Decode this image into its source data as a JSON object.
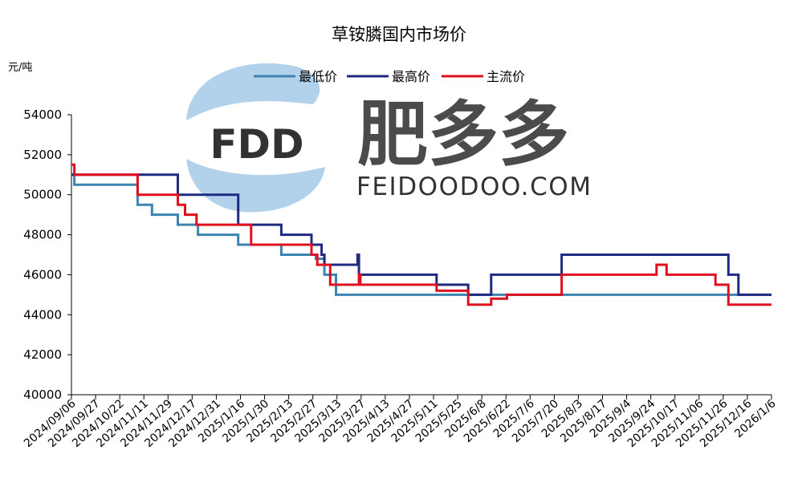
{
  "chart_data": {
    "type": "line",
    "title": "草铵膦国内市场价",
    "ylabel": "元/吨",
    "xlabel": "",
    "ylim": [
      40000,
      54000
    ],
    "yticks": [
      40000,
      42000,
      44000,
      46000,
      48000,
      50000,
      52000,
      54000
    ],
    "x_tick_labels": [
      "2024/09/06",
      "2024/09/27",
      "2024/10/22",
      "2024/11/11",
      "2024/11/29",
      "2024/12/17",
      "2024/12/31",
      "2025/1/16",
      "2025/1/30",
      "2025/2/13",
      "2025/2/27",
      "2025/3/13",
      "2025/3/27",
      "2025/4/13",
      "2025/4/27",
      "2025/5/11",
      "2025/5/25",
      "2025/6/8",
      "2025/6/22",
      "2025/7/6",
      "2025/7/20",
      "2025/8/3",
      "2025/8/17",
      "2025/9/4",
      "2025/9/24",
      "2025/10/17",
      "2025/11/06",
      "2025/11/26",
      "2025/12/16",
      "2026/1/6"
    ],
    "legend_position": "top-center",
    "grid": false,
    "series": [
      {
        "name": "最低价",
        "color": "#3D85B0",
        "points": [
          [
            "2024-09-06",
            51000
          ],
          [
            "2024-09-08",
            50500
          ],
          [
            "2024-10-22",
            49500
          ],
          [
            "2024-11-01",
            49000
          ],
          [
            "2024-11-19",
            48500
          ],
          [
            "2024-12-03",
            48000
          ],
          [
            "2024-12-31",
            47500
          ],
          [
            "2025-01-30",
            47000
          ],
          [
            "2025-02-23",
            46800
          ],
          [
            "2025-03-01",
            46000
          ],
          [
            "2025-03-09",
            45000
          ],
          [
            "2026-01-06",
            45000
          ]
        ]
      },
      {
        "name": "最高价",
        "color": "#1F2A80",
        "points": [
          [
            "2024-09-06",
            51000
          ],
          [
            "2024-11-19",
            50000
          ],
          [
            "2024-12-31",
            48500
          ],
          [
            "2025-01-30",
            48000
          ],
          [
            "2025-02-20",
            47500
          ],
          [
            "2025-02-27",
            47000
          ],
          [
            "2025-03-01",
            46500
          ],
          [
            "2025-03-24",
            47000
          ],
          [
            "2025-03-25",
            46000
          ],
          [
            "2025-05-18",
            45500
          ],
          [
            "2025-06-09",
            45000
          ],
          [
            "2025-06-25",
            46000
          ],
          [
            "2025-08-13",
            47000
          ],
          [
            "2025-12-07",
            46000
          ],
          [
            "2025-12-14",
            45000
          ],
          [
            "2026-01-06",
            45000
          ]
        ]
      },
      {
        "name": "主流价",
        "color": "#E0101E",
        "points": [
          [
            "2024-09-06",
            51500
          ],
          [
            "2024-09-08",
            51000
          ],
          [
            "2024-10-22",
            50000
          ],
          [
            "2024-11-19",
            49500
          ],
          [
            "2024-11-24",
            49000
          ],
          [
            "2024-12-02",
            48500
          ],
          [
            "2025-01-09",
            47500
          ],
          [
            "2025-02-20",
            47000
          ],
          [
            "2025-02-24",
            46500
          ],
          [
            "2025-03-05",
            45500
          ],
          [
            "2025-03-25",
            46000
          ],
          [
            "2025-03-26",
            45500
          ],
          [
            "2025-05-18",
            45200
          ],
          [
            "2025-06-09",
            44500
          ],
          [
            "2025-06-25",
            44800
          ],
          [
            "2025-07-06",
            45000
          ],
          [
            "2025-08-13",
            46000
          ],
          [
            "2025-10-18",
            46500
          ],
          [
            "2025-10-25",
            46000
          ],
          [
            "2025-11-28",
            45500
          ],
          [
            "2025-12-07",
            44500
          ],
          [
            "2026-01-06",
            44500
          ]
        ]
      }
    ]
  },
  "watermark": {
    "logo_text": "FDD",
    "brand_cn": "肥多多",
    "brand_en": "FEIDOODOO.COM"
  }
}
